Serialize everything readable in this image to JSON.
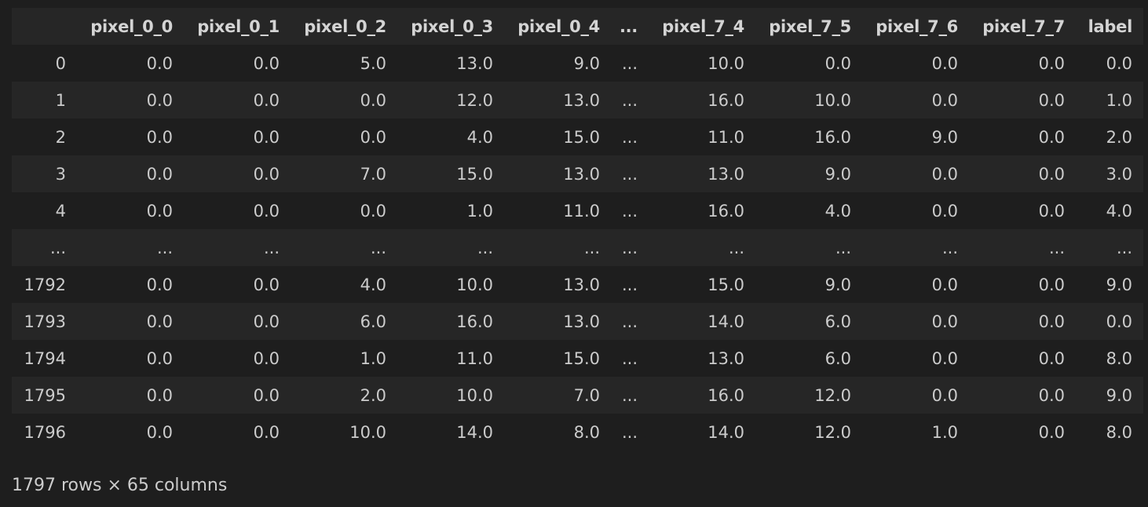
{
  "columns": [
    "",
    "pixel_0_0",
    "pixel_0_1",
    "pixel_0_2",
    "pixel_0_3",
    "pixel_0_4",
    "...",
    "pixel_7_4",
    "pixel_7_5",
    "pixel_7_6",
    "pixel_7_7",
    "label"
  ],
  "rows": [
    {
      "index": "0",
      "cells": [
        "0.0",
        "0.0",
        "5.0",
        "13.0",
        "9.0",
        "...",
        "10.0",
        "0.0",
        "0.0",
        "0.0",
        "0.0"
      ]
    },
    {
      "index": "1",
      "cells": [
        "0.0",
        "0.0",
        "0.0",
        "12.0",
        "13.0",
        "...",
        "16.0",
        "10.0",
        "0.0",
        "0.0",
        "1.0"
      ]
    },
    {
      "index": "2",
      "cells": [
        "0.0",
        "0.0",
        "0.0",
        "4.0",
        "15.0",
        "...",
        "11.0",
        "16.0",
        "9.0",
        "0.0",
        "2.0"
      ]
    },
    {
      "index": "3",
      "cells": [
        "0.0",
        "0.0",
        "7.0",
        "15.0",
        "13.0",
        "...",
        "13.0",
        "9.0",
        "0.0",
        "0.0",
        "3.0"
      ]
    },
    {
      "index": "4",
      "cells": [
        "0.0",
        "0.0",
        "0.0",
        "1.0",
        "11.0",
        "...",
        "16.0",
        "4.0",
        "0.0",
        "0.0",
        "4.0"
      ]
    },
    {
      "index": "...",
      "cells": [
        "...",
        "...",
        "...",
        "...",
        "...",
        "...",
        "...",
        "...",
        "...",
        "...",
        "..."
      ]
    },
    {
      "index": "1792",
      "cells": [
        "0.0",
        "0.0",
        "4.0",
        "10.0",
        "13.0",
        "...",
        "15.0",
        "9.0",
        "0.0",
        "0.0",
        "9.0"
      ]
    },
    {
      "index": "1793",
      "cells": [
        "0.0",
        "0.0",
        "6.0",
        "16.0",
        "13.0",
        "...",
        "14.0",
        "6.0",
        "0.0",
        "0.0",
        "0.0"
      ]
    },
    {
      "index": "1794",
      "cells": [
        "0.0",
        "0.0",
        "1.0",
        "11.0",
        "15.0",
        "...",
        "13.0",
        "6.0",
        "0.0",
        "0.0",
        "8.0"
      ]
    },
    {
      "index": "1795",
      "cells": [
        "0.0",
        "0.0",
        "2.0",
        "10.0",
        "7.0",
        "...",
        "16.0",
        "12.0",
        "0.0",
        "0.0",
        "9.0"
      ]
    },
    {
      "index": "1796",
      "cells": [
        "0.0",
        "0.0",
        "10.0",
        "14.0",
        "8.0",
        "...",
        "14.0",
        "12.0",
        "1.0",
        "0.0",
        "8.0"
      ]
    }
  ],
  "shape_note": "1797 rows × 65 columns",
  "colors": {
    "background": "#1e1e1e",
    "row_alt": "#262626",
    "text": "#cccccc"
  }
}
